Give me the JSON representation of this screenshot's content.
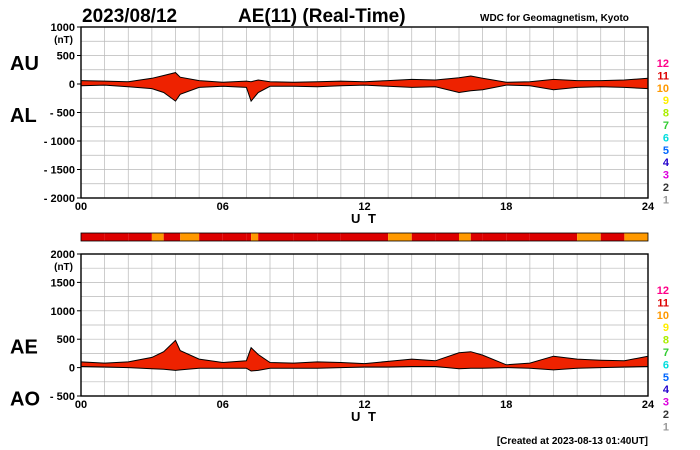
{
  "header": {
    "date": "2023/08/12",
    "title": "AE(11) (Real-Time)",
    "source": "WDC for Geomagnetism, Kyoto"
  },
  "footer": {
    "created": "[Created at 2023-08-13 01:40UT]"
  },
  "colors": {
    "fill": "#ee2200",
    "line": "#000000",
    "grid": "#b8b8b8",
    "legend": [
      "#dddddd",
      "#999999",
      "#333333",
      "#dd00dd",
      "#2200cc",
      "#0066ff",
      "#00dddd",
      "#33cc33",
      "#aaee00",
      "#ffee00",
      "#ff9900",
      "#dd0000",
      "#ff0088"
    ]
  },
  "chart_data": [
    {
      "id": "upper",
      "type": "area",
      "series": [
        {
          "name": "AU"
        },
        {
          "name": "AL"
        }
      ],
      "labels": {
        "top": "AU",
        "bottom": "AL"
      },
      "unit": "(nT)",
      "xlabel": "U T",
      "ylim": [
        -2000,
        1000
      ],
      "yticks": [
        {
          "v": 1000,
          "label": "1000"
        },
        {
          "v": 500,
          "label": "500"
        },
        {
          "v": 0,
          "label": "0"
        },
        {
          "v": -500,
          "label": "- 500"
        },
        {
          "v": -1000,
          "label": "- 1000"
        },
        {
          "v": -1500,
          "label": "- 1500"
        },
        {
          "v": -2000,
          "label": "- 2000"
        }
      ],
      "xlim": [
        0,
        24
      ],
      "xticks": [
        {
          "v": 0,
          "label": "00"
        },
        {
          "v": 6,
          "label": "06"
        },
        {
          "v": 12,
          "label": "12"
        },
        {
          "v": 18,
          "label": "18"
        },
        {
          "v": 24,
          "label": "24"
        }
      ],
      "x": [
        0,
        1,
        2,
        3,
        3.5,
        4,
        4.2,
        5,
        6,
        7,
        7.2,
        7.5,
        8,
        9,
        10,
        11,
        12,
        13,
        14,
        15,
        16,
        16.5,
        17,
        18,
        19,
        20,
        21,
        22,
        23,
        24
      ],
      "upper": [
        60,
        50,
        40,
        100,
        150,
        200,
        120,
        60,
        30,
        50,
        40,
        70,
        40,
        30,
        40,
        50,
        40,
        60,
        80,
        70,
        110,
        140,
        100,
        30,
        40,
        80,
        60,
        60,
        70,
        100
      ],
      "lower": [
        -30,
        -20,
        -50,
        -80,
        -150,
        -300,
        -180,
        -60,
        -40,
        -60,
        -300,
        -150,
        -40,
        -40,
        -50,
        -30,
        -20,
        -40,
        -60,
        -50,
        -150,
        -120,
        -100,
        -20,
        -30,
        -100,
        -60,
        -50,
        -60,
        -80
      ]
    },
    {
      "id": "lower",
      "type": "area",
      "series": [
        {
          "name": "AE"
        },
        {
          "name": "AO"
        }
      ],
      "labels": {
        "top": "AE",
        "bottom": "AO"
      },
      "unit": "(nT)",
      "xlabel": "U T",
      "ylim": [
        -500,
        2000
      ],
      "yticks": [
        {
          "v": 2000,
          "label": "2000"
        },
        {
          "v": 1500,
          "label": "1500"
        },
        {
          "v": 1000,
          "label": "1000"
        },
        {
          "v": 500,
          "label": "500"
        },
        {
          "v": 0,
          "label": "0"
        },
        {
          "v": -500,
          "label": "- 500"
        }
      ],
      "xlim": [
        0,
        24
      ],
      "xticks": [
        {
          "v": 0,
          "label": "00"
        },
        {
          "v": 6,
          "label": "06"
        },
        {
          "v": 12,
          "label": "12"
        },
        {
          "v": 18,
          "label": "18"
        },
        {
          "v": 24,
          "label": "24"
        }
      ],
      "x": [
        0,
        1,
        2,
        3,
        3.5,
        4,
        4.2,
        5,
        6,
        7,
        7.2,
        7.5,
        8,
        9,
        10,
        11,
        12,
        13,
        14,
        15,
        16,
        16.5,
        17,
        18,
        19,
        20,
        21,
        22,
        23,
        24
      ],
      "upper": [
        100,
        80,
        100,
        180,
        280,
        480,
        300,
        150,
        90,
        120,
        350,
        230,
        90,
        80,
        100,
        90,
        70,
        110,
        150,
        120,
        260,
        280,
        220,
        50,
        80,
        200,
        150,
        130,
        120,
        200
      ],
      "lower": [
        20,
        10,
        0,
        -20,
        -30,
        -50,
        -40,
        -10,
        -10,
        -10,
        -60,
        -50,
        -10,
        -10,
        -10,
        0,
        10,
        10,
        20,
        20,
        -20,
        -10,
        -10,
        0,
        -10,
        -40,
        -10,
        0,
        10,
        20
      ]
    }
  ],
  "status_bar": {
    "x": [
      0,
      1,
      2,
      3,
      3.5,
      4,
      4.2,
      5,
      6,
      7,
      7.2,
      7.5,
      8,
      9,
      10,
      11,
      12,
      13,
      14,
      15,
      16,
      16.5,
      17,
      18,
      19,
      20,
      21,
      22,
      23,
      24
    ],
    "levels": [
      11,
      11,
      11,
      10,
      11,
      11,
      10,
      11,
      11,
      11,
      10,
      11,
      11,
      11,
      11,
      11,
      11,
      10,
      11,
      11,
      10,
      11,
      11,
      11,
      11,
      11,
      10,
      11,
      10,
      9
    ]
  },
  "legend": {
    "levels": [
      "12",
      "11",
      "10",
      "9",
      "8",
      "7",
      "6",
      "5",
      "4",
      "3",
      "2",
      "1"
    ]
  }
}
